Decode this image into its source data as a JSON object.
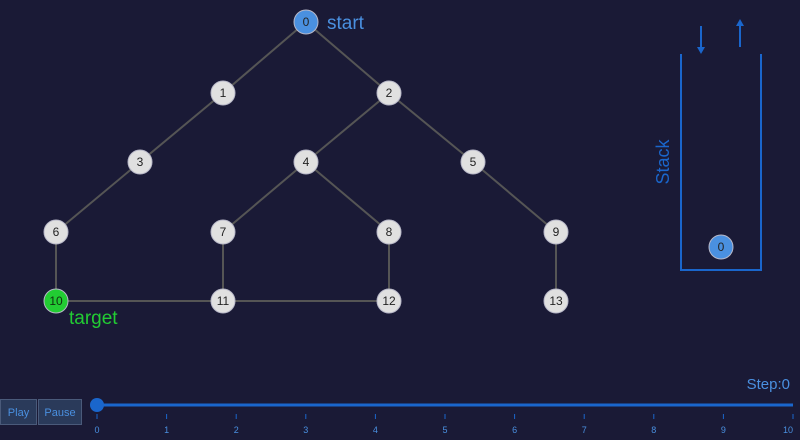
{
  "graph": {
    "nodes": [
      {
        "id": "0",
        "label": "0",
        "state": "start"
      },
      {
        "id": "1",
        "label": "1",
        "state": "default"
      },
      {
        "id": "2",
        "label": "2",
        "state": "default"
      },
      {
        "id": "3",
        "label": "3",
        "state": "default"
      },
      {
        "id": "4",
        "label": "4",
        "state": "default"
      },
      {
        "id": "5",
        "label": "5",
        "state": "default"
      },
      {
        "id": "6",
        "label": "6",
        "state": "default"
      },
      {
        "id": "7",
        "label": "7",
        "state": "default"
      },
      {
        "id": "8",
        "label": "8",
        "state": "default"
      },
      {
        "id": "9",
        "label": "9",
        "state": "default"
      },
      {
        "id": "10",
        "label": "10",
        "state": "target"
      },
      {
        "id": "11",
        "label": "11",
        "state": "default"
      },
      {
        "id": "12",
        "label": "12",
        "state": "default"
      },
      {
        "id": "13",
        "label": "13",
        "state": "default"
      }
    ],
    "edges": [
      [
        "0",
        "1"
      ],
      [
        "0",
        "2"
      ],
      [
        "1",
        "3"
      ],
      [
        "2",
        "4"
      ],
      [
        "2",
        "5"
      ],
      [
        "3",
        "6"
      ],
      [
        "4",
        "7"
      ],
      [
        "4",
        "8"
      ],
      [
        "5",
        "9"
      ],
      [
        "6",
        "10"
      ],
      [
        "7",
        "11"
      ],
      [
        "8",
        "12"
      ],
      [
        "9",
        "13"
      ],
      [
        "10",
        "11"
      ],
      [
        "11",
        "12"
      ]
    ],
    "start_label": "start",
    "target_label": "target"
  },
  "stack": {
    "title": "Stack",
    "items": [
      "0"
    ]
  },
  "controls": {
    "play_label": "Play",
    "pause_label": "Pause",
    "step_text": "Step:0",
    "slider_value": 0,
    "slider_ticks": [
      "0",
      "1",
      "2",
      "3",
      "4",
      "5",
      "6",
      "7",
      "8",
      "9",
      "10"
    ]
  },
  "colors": {
    "background": "#1a1a36",
    "accent": "#4a90e0",
    "start_node": "#4a90e0",
    "target_node": "#22cc33",
    "default_node": "#e0e0e0",
    "edge": "#555555"
  }
}
